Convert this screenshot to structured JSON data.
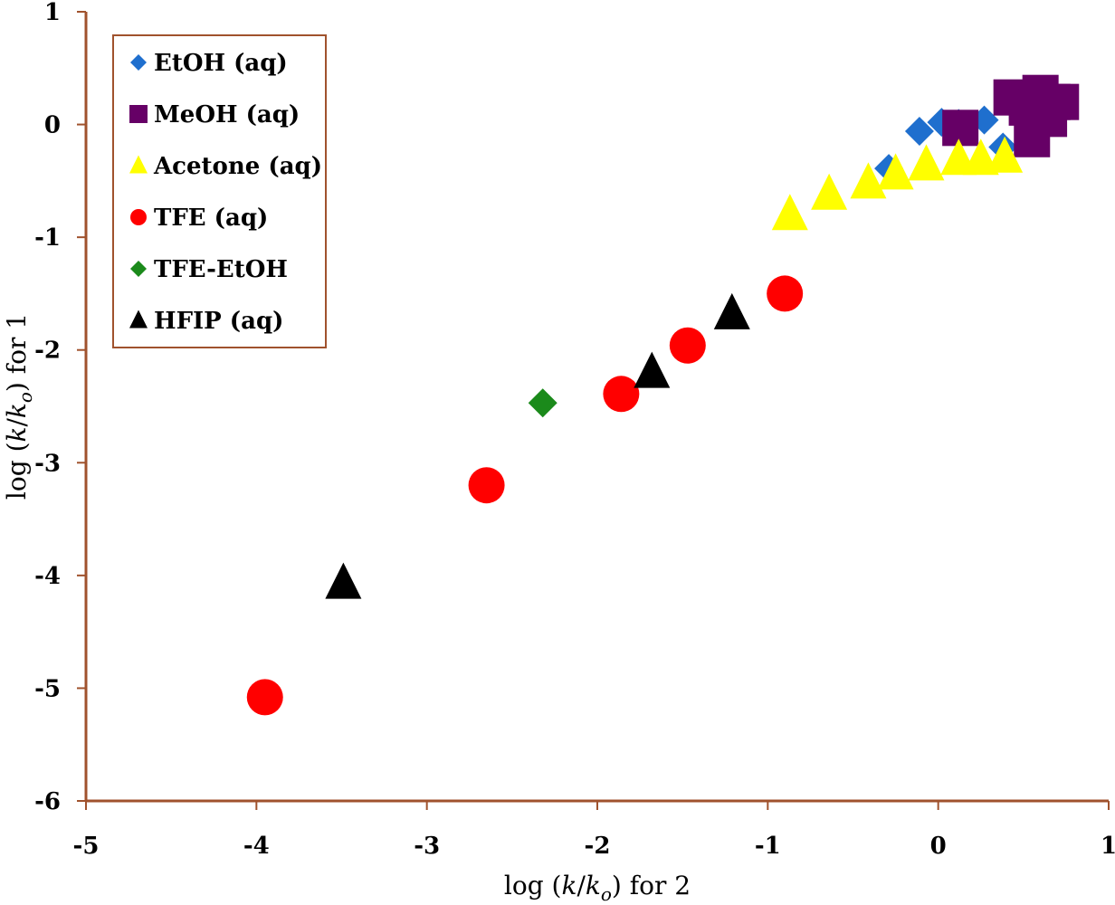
{
  "chart_data": {
    "type": "scatter",
    "title": "",
    "xlabel": {
      "prefix": "log (",
      "k": "k",
      "slash": "/",
      "k2": "k",
      "sub": "o",
      "suffix": ") for 2"
    },
    "ylabel": {
      "prefix": "log (",
      "k": "k",
      "slash": "/",
      "k2": "k",
      "sub": "o",
      "suffix": ") for 1"
    },
    "xlim": [
      -5,
      1
    ],
    "ylim": [
      -6,
      1
    ],
    "xticks": [
      -5,
      -4,
      -3,
      -2,
      -1,
      0,
      1
    ],
    "yticks": [
      -6,
      -5,
      -4,
      -3,
      -2,
      -1,
      0,
      1
    ],
    "grid": false,
    "legend_position": "top-left",
    "colors": {
      "axis": "#a0522d",
      "legend_border": "#a0522d"
    },
    "series": [
      {
        "name": "EtOH (aq)",
        "marker": "diamond",
        "color": "#1f6fce",
        "points": [
          [
            -0.29,
            -0.39
          ],
          [
            -0.11,
            -0.06
          ],
          [
            0.02,
            0.02
          ],
          [
            0.12,
            0.01
          ],
          [
            0.27,
            0.04
          ],
          [
            0.38,
            -0.2
          ],
          [
            0.5,
            0.06
          ],
          [
            0.58,
            0.12
          ]
        ]
      },
      {
        "name": "MeOH (aq)",
        "marker": "square",
        "color": "#660066",
        "points": [
          [
            0.13,
            -0.03
          ],
          [
            0.43,
            0.24
          ],
          [
            0.52,
            0.15
          ],
          [
            0.55,
            -0.13
          ],
          [
            0.58,
            0.22
          ],
          [
            0.6,
            0.28
          ],
          [
            0.65,
            0.05
          ],
          [
            0.67,
            0.2
          ],
          [
            0.72,
            0.2
          ]
        ]
      },
      {
        "name": "Acetone (aq)",
        "marker": "triangle",
        "color": "#ffff00",
        "points": [
          [
            -0.87,
            -0.8
          ],
          [
            -0.64,
            -0.62
          ],
          [
            -0.41,
            -0.52
          ],
          [
            -0.25,
            -0.44
          ],
          [
            -0.07,
            -0.36
          ],
          [
            0.12,
            -0.31
          ],
          [
            0.25,
            -0.31
          ],
          [
            0.39,
            -0.29
          ]
        ]
      },
      {
        "name": "TFE (aq)",
        "marker": "circle",
        "color": "#ff0000",
        "points": [
          [
            -3.95,
            -5.08
          ],
          [
            -2.65,
            -3.2
          ],
          [
            -1.86,
            -2.39
          ],
          [
            -1.47,
            -1.96
          ],
          [
            -0.9,
            -1.5
          ]
        ]
      },
      {
        "name": "TFE-EtOH",
        "marker": "diamond",
        "color": "#1b8a1b",
        "points": [
          [
            -2.32,
            -2.47
          ]
        ]
      },
      {
        "name": "HFIP (aq)",
        "marker": "triangle",
        "color": "#000000",
        "points": [
          [
            -3.49,
            -4.07
          ],
          [
            -1.68,
            -2.2
          ],
          [
            -1.21,
            -1.68
          ]
        ]
      }
    ]
  }
}
